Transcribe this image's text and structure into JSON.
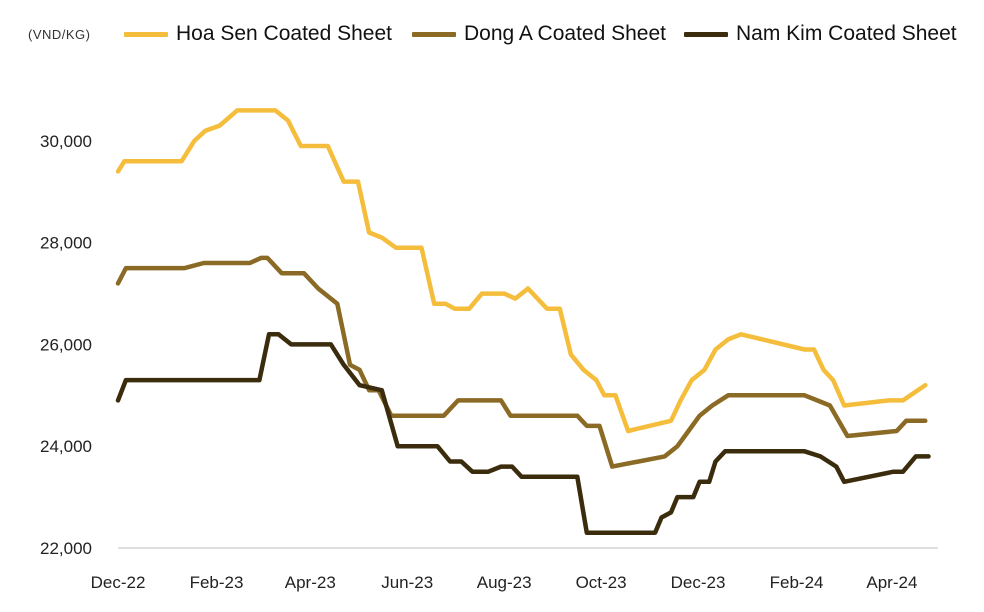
{
  "chart_data": {
    "type": "line",
    "unit_label": "(VND/KG)",
    "ylim": [
      22000,
      31000
    ],
    "y_ticks": [
      22000,
      24000,
      26000,
      28000,
      30000
    ],
    "y_tick_labels": [
      "22,000",
      "24,000",
      "26,000",
      "28,000",
      "30,000"
    ],
    "x_ticks": [
      {
        "label": "Dec-22",
        "x": "2022-12-01"
      },
      {
        "label": "Feb-23",
        "x": "2023-02-01"
      },
      {
        "label": "Apr-23",
        "x": "2023-04-01"
      },
      {
        "label": "Jun-23",
        "x": "2023-06-01"
      },
      {
        "label": "Aug-23",
        "x": "2023-08-01"
      },
      {
        "label": "Oct-23",
        "x": "2023-10-01"
      },
      {
        "label": "Dec-23",
        "x": "2023-12-01"
      },
      {
        "label": "Feb-24",
        "x": "2024-02-01"
      },
      {
        "label": "Apr-24",
        "x": "2024-04-01"
      }
    ],
    "xlim": [
      "2022-12-01",
      "2024-04-30"
    ],
    "grid": false,
    "legend_position": "top",
    "series": [
      {
        "name": "Hoa Sen Coated Sheet",
        "color": "#F5BD3C",
        "points": [
          [
            "2022-12-01",
            29400
          ],
          [
            "2022-12-05",
            29600
          ],
          [
            "2023-01-10",
            29600
          ],
          [
            "2023-01-18",
            30000
          ],
          [
            "2023-01-25",
            30200
          ],
          [
            "2023-02-03",
            30300
          ],
          [
            "2023-02-14",
            30600
          ],
          [
            "2023-03-10",
            30600
          ],
          [
            "2023-03-18",
            30400
          ],
          [
            "2023-03-26",
            29900
          ],
          [
            "2023-04-12",
            29900
          ],
          [
            "2023-04-22",
            29200
          ],
          [
            "2023-05-01",
            29200
          ],
          [
            "2023-05-08",
            28200
          ],
          [
            "2023-05-16",
            28100
          ],
          [
            "2023-05-25",
            27900
          ],
          [
            "2023-06-10",
            27900
          ],
          [
            "2023-06-18",
            26800
          ],
          [
            "2023-06-25",
            26800
          ],
          [
            "2023-07-01",
            26700
          ],
          [
            "2023-07-10",
            26700
          ],
          [
            "2023-07-18",
            27000
          ],
          [
            "2023-08-01",
            27000
          ],
          [
            "2023-08-08",
            26900
          ],
          [
            "2023-08-16",
            27100
          ],
          [
            "2023-08-28",
            26700
          ],
          [
            "2023-09-05",
            26700
          ],
          [
            "2023-09-12",
            25800
          ],
          [
            "2023-09-20",
            25500
          ],
          [
            "2023-09-28",
            25300
          ],
          [
            "2023-10-03",
            25000
          ],
          [
            "2023-10-10",
            25000
          ],
          [
            "2023-10-18",
            24300
          ],
          [
            "2023-11-14",
            24500
          ],
          [
            "2023-11-20",
            24900
          ],
          [
            "2023-11-27",
            25300
          ],
          [
            "2023-12-05",
            25500
          ],
          [
            "2023-12-12",
            25900
          ],
          [
            "2023-12-20",
            26100
          ],
          [
            "2023-12-28",
            26200
          ],
          [
            "2024-02-06",
            25900
          ],
          [
            "2024-02-12",
            25900
          ],
          [
            "2024-02-18",
            25500
          ],
          [
            "2024-02-24",
            25300
          ],
          [
            "2024-03-02",
            24800
          ],
          [
            "2024-03-30",
            24900
          ],
          [
            "2024-04-08",
            24900
          ],
          [
            "2024-04-22",
            25200
          ]
        ]
      },
      {
        "name": "Dong A Coated Sheet",
        "color": "#8A6A25",
        "points": [
          [
            "2022-12-01",
            27200
          ],
          [
            "2022-12-06",
            27500
          ],
          [
            "2023-01-12",
            27500
          ],
          [
            "2023-01-24",
            27600
          ],
          [
            "2023-02-22",
            27600
          ],
          [
            "2023-03-01",
            27700
          ],
          [
            "2023-03-05",
            27700
          ],
          [
            "2023-03-14",
            27400
          ],
          [
            "2023-03-28",
            27400
          ],
          [
            "2023-04-06",
            27100
          ],
          [
            "2023-04-18",
            26800
          ],
          [
            "2023-04-26",
            25600
          ],
          [
            "2023-05-02",
            25500
          ],
          [
            "2023-05-08",
            25100
          ],
          [
            "2023-05-14",
            25100
          ],
          [
            "2023-05-22",
            24600
          ],
          [
            "2023-06-24",
            24600
          ],
          [
            "2023-07-03",
            24900
          ],
          [
            "2023-07-30",
            24900
          ],
          [
            "2023-08-05",
            24600
          ],
          [
            "2023-09-16",
            24600
          ],
          [
            "2023-09-22",
            24400
          ],
          [
            "2023-09-30",
            24400
          ],
          [
            "2023-10-08",
            23600
          ],
          [
            "2023-11-10",
            23800
          ],
          [
            "2023-11-18",
            24000
          ],
          [
            "2023-11-25",
            24300
          ],
          [
            "2023-12-02",
            24600
          ],
          [
            "2023-12-10",
            24800
          ],
          [
            "2023-12-20",
            25000
          ],
          [
            "2024-02-06",
            25000
          ],
          [
            "2024-02-14",
            24900
          ],
          [
            "2024-02-22",
            24800
          ],
          [
            "2024-03-04",
            24200
          ],
          [
            "2024-04-04",
            24300
          ],
          [
            "2024-04-10",
            24500
          ],
          [
            "2024-04-22",
            24500
          ]
        ]
      },
      {
        "name": "Nam Kim Coated Sheet",
        "color": "#3A2C0C",
        "points": [
          [
            "2022-12-01",
            24900
          ],
          [
            "2022-12-06",
            25300
          ],
          [
            "2023-02-28",
            25300
          ],
          [
            "2023-03-06",
            26200
          ],
          [
            "2023-03-12",
            26200
          ],
          [
            "2023-03-20",
            26000
          ],
          [
            "2023-04-14",
            26000
          ],
          [
            "2023-04-22",
            25600
          ],
          [
            "2023-05-02",
            25200
          ],
          [
            "2023-05-16",
            25100
          ],
          [
            "2023-05-26",
            24000
          ],
          [
            "2023-06-20",
            24000
          ],
          [
            "2023-06-28",
            23700
          ],
          [
            "2023-07-05",
            23700
          ],
          [
            "2023-07-12",
            23500
          ],
          [
            "2023-07-22",
            23500
          ],
          [
            "2023-07-30",
            23600
          ],
          [
            "2023-08-06",
            23600
          ],
          [
            "2023-08-12",
            23400
          ],
          [
            "2023-09-16",
            23400
          ],
          [
            "2023-09-22",
            22300
          ],
          [
            "2023-11-04",
            22300
          ],
          [
            "2023-11-08",
            22600
          ],
          [
            "2023-11-14",
            22700
          ],
          [
            "2023-11-18",
            23000
          ],
          [
            "2023-11-28",
            23000
          ],
          [
            "2023-12-02",
            23300
          ],
          [
            "2023-12-08",
            23300
          ],
          [
            "2023-12-12",
            23700
          ],
          [
            "2023-12-18",
            23900
          ],
          [
            "2024-02-06",
            23900
          ],
          [
            "2024-02-16",
            23800
          ],
          [
            "2024-02-26",
            23600
          ],
          [
            "2024-03-02",
            23300
          ],
          [
            "2024-04-02",
            23500
          ],
          [
            "2024-04-08",
            23500
          ],
          [
            "2024-04-16",
            23800
          ],
          [
            "2024-04-24",
            23800
          ]
        ]
      }
    ]
  }
}
